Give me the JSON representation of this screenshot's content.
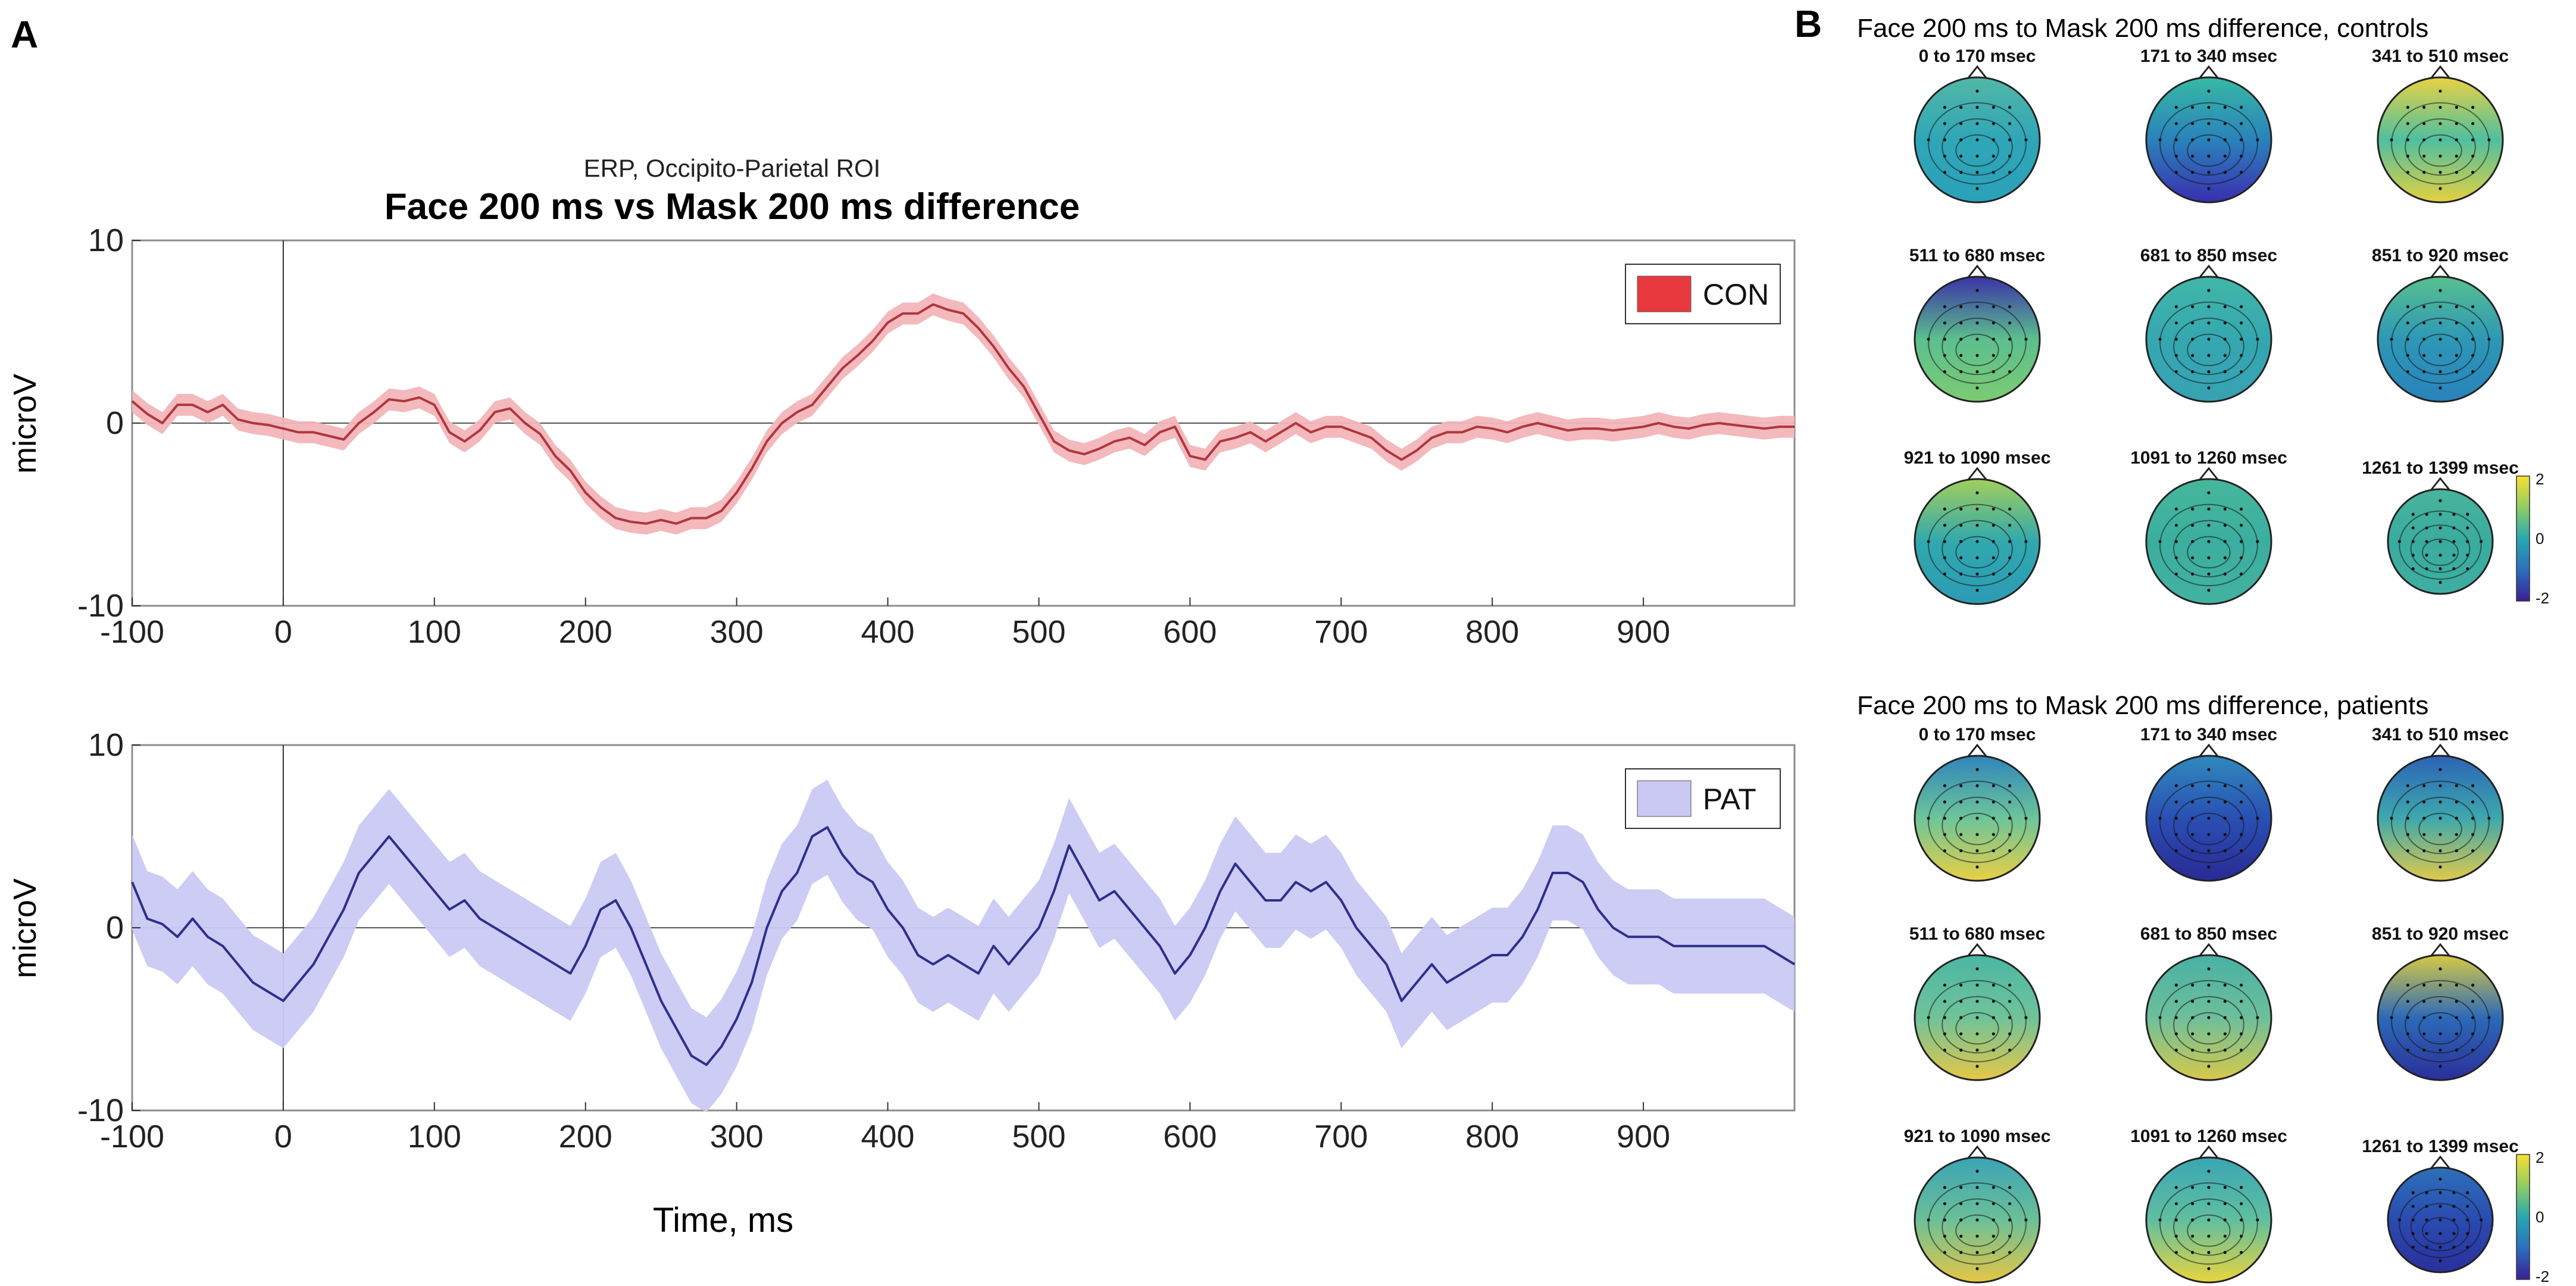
{
  "panels": {
    "a_label": "A",
    "b_label": "B"
  },
  "colors": {
    "con_line": "#b0353f",
    "con_band": "#f2b5b8",
    "con_legend": "#e8393e",
    "pat_line": "#2e2e8c",
    "pat_band": "#c9c9f3",
    "pat_legend": "#c9c9f3",
    "axis": "#222222",
    "frame": "#8c8c8c"
  },
  "chart_data": [
    {
      "type": "line",
      "supertitle": "ERP, Occipito-Parietal ROI",
      "title": "Face 200 ms vs Mask 200 ms difference",
      "xlabel": "",
      "ylabel": "microV",
      "xlim": [
        -100,
        1000
      ],
      "ylim": [
        -10,
        10
      ],
      "xticks": [
        -100,
        0,
        100,
        200,
        300,
        400,
        500,
        600,
        700,
        800,
        900
      ],
      "yticks": [
        -10,
        0,
        10
      ],
      "legend": {
        "label": "CON",
        "position": "top-right"
      },
      "band_halfwidth": 0.6,
      "series": [
        {
          "name": "CON",
          "x": [
            -100,
            -90,
            -80,
            -70,
            -60,
            -50,
            -40,
            -30,
            -20,
            -10,
            0,
            10,
            20,
            30,
            40,
            50,
            60,
            70,
            80,
            90,
            100,
            110,
            120,
            130,
            140,
            150,
            160,
            170,
            180,
            190,
            200,
            210,
            220,
            230,
            240,
            250,
            260,
            270,
            280,
            290,
            300,
            310,
            320,
            330,
            340,
            350,
            360,
            370,
            380,
            390,
            400,
            410,
            420,
            430,
            440,
            450,
            460,
            470,
            480,
            490,
            500,
            510,
            520,
            530,
            540,
            550,
            560,
            570,
            580,
            590,
            600,
            610,
            620,
            630,
            640,
            650,
            660,
            670,
            680,
            690,
            700,
            710,
            720,
            730,
            740,
            750,
            760,
            770,
            780,
            790,
            800,
            810,
            820,
            830,
            840,
            850,
            860,
            870,
            880,
            890,
            900,
            910,
            920,
            930,
            940,
            950,
            960,
            970,
            980,
            990,
            1000
          ],
          "y": [
            1.2,
            0.5,
            0,
            1,
            1,
            0.6,
            1,
            0.2,
            0,
            -0.1,
            -0.3,
            -0.5,
            -0.5,
            -0.7,
            -0.9,
            0,
            0.6,
            1.3,
            1.2,
            1.4,
            1,
            -0.5,
            -1,
            -0.4,
            0.6,
            0.8,
            0,
            -0.6,
            -1.8,
            -2.6,
            -3.8,
            -4.6,
            -5.2,
            -5.4,
            -5.5,
            -5.3,
            -5.5,
            -5.2,
            -5.2,
            -4.8,
            -3.8,
            -2.5,
            -1,
            0,
            0.6,
            1,
            2,
            3,
            3.7,
            4.5,
            5.5,
            6,
            6,
            6.5,
            6.2,
            6,
            5.2,
            4.2,
            3,
            2,
            0.5,
            -1,
            -1.5,
            -1.7,
            -1.4,
            -1,
            -0.8,
            -1.2,
            -0.5,
            -0.2,
            -1.8,
            -2,
            -1,
            -0.8,
            -0.5,
            -1,
            -0.5,
            0,
            -0.5,
            -0.2,
            -0.2,
            -0.5,
            -0.8,
            -1.5,
            -2,
            -1.5,
            -0.8,
            -0.5,
            -0.5,
            -0.2,
            -0.3,
            -0.5,
            -0.2,
            0,
            -0.2,
            -0.4,
            -0.3,
            -0.3,
            -0.4,
            -0.3,
            -0.2,
            0,
            -0.2,
            -0.3,
            -0.1,
            0,
            -0.1,
            -0.2,
            -0.3,
            -0.2,
            -0.2
          ]
        }
      ]
    },
    {
      "type": "line",
      "title": "",
      "xlabel": "Time, ms",
      "ylabel": "microV",
      "xlim": [
        -100,
        1000
      ],
      "ylim": [
        -10,
        10
      ],
      "xticks": [
        -100,
        0,
        100,
        200,
        300,
        400,
        500,
        600,
        700,
        800,
        900
      ],
      "yticks": [
        -10,
        0,
        10
      ],
      "legend": {
        "label": "PAT",
        "position": "top-right"
      },
      "band_halfwidth": 2.6,
      "series": [
        {
          "name": "PAT",
          "x": [
            -100,
            -90,
            -80,
            -70,
            -60,
            -50,
            -40,
            -30,
            -20,
            -10,
            0,
            10,
            20,
            30,
            40,
            50,
            60,
            70,
            80,
            90,
            100,
            110,
            120,
            130,
            140,
            150,
            160,
            170,
            180,
            190,
            200,
            210,
            220,
            230,
            240,
            250,
            260,
            270,
            280,
            290,
            300,
            310,
            320,
            330,
            340,
            350,
            360,
            370,
            380,
            390,
            400,
            410,
            420,
            430,
            440,
            450,
            460,
            470,
            480,
            490,
            500,
            510,
            520,
            530,
            540,
            550,
            560,
            570,
            580,
            590,
            600,
            610,
            620,
            630,
            640,
            650,
            660,
            670,
            680,
            690,
            700,
            710,
            720,
            730,
            740,
            750,
            760,
            770,
            780,
            790,
            800,
            810,
            820,
            830,
            840,
            850,
            860,
            870,
            880,
            890,
            900,
            910,
            920,
            930,
            940,
            950,
            960,
            970,
            980,
            990,
            1000
          ],
          "y": [
            2.5,
            0.5,
            0.2,
            -0.5,
            0.5,
            -0.5,
            -1,
            -2,
            -3,
            -3.5,
            -4,
            -3,
            -2,
            -0.5,
            1,
            3,
            4,
            5,
            4,
            3,
            2,
            1,
            1.5,
            0.5,
            0,
            -0.5,
            -1,
            -1.5,
            -2,
            -2.5,
            -1,
            1,
            1.5,
            0,
            -2,
            -4,
            -5.5,
            -7,
            -7.5,
            -6.5,
            -5,
            -3,
            0,
            2,
            3,
            5,
            5.5,
            4,
            3,
            2.5,
            1,
            0,
            -1.5,
            -2,
            -1.5,
            -2,
            -2.5,
            -1,
            -2,
            -1,
            0,
            2,
            4.5,
            3,
            1.5,
            2,
            1,
            0,
            -1,
            -2.5,
            -1.5,
            0,
            2,
            3.5,
            2.5,
            1.5,
            1.5,
            2.5,
            2,
            2.5,
            1.5,
            0,
            -1,
            -2,
            -4,
            -3,
            -2,
            -3,
            -2.5,
            -2,
            -1.5,
            -1.5,
            -0.5,
            1,
            3,
            3,
            2.5,
            1,
            0,
            -0.5,
            -0.5,
            -0.5,
            -1,
            -1,
            -1,
            -1,
            -1,
            -1,
            -1,
            -1.5,
            -2
          ]
        }
      ]
    }
  ],
  "topomaps": {
    "controls": {
      "title": "Face 200 ms to Mask 200 ms difference, controls",
      "maps": [
        {
          "label": "0 to 170 msec",
          "top": "#52b7a6",
          "mid": "#2fa6b7",
          "bottom": "#2aa1ba"
        },
        {
          "label": "171 to 340 msec",
          "top": "#37b9a4",
          "mid": "#2a82bb",
          "bottom": "#3a2fb0"
        },
        {
          "label": "341 to 510 msec",
          "top": "#e8d241",
          "mid": "#4fbfa0",
          "bottom": "#e4d040"
        },
        {
          "label": "511 to 680 msec",
          "top": "#3a33a7",
          "mid": "#5cbf8e",
          "bottom": "#7ccb72"
        },
        {
          "label": "681 to 850 msec",
          "top": "#41b7a7",
          "mid": "#35a7b0",
          "bottom": "#36a2b3"
        },
        {
          "label": "851 to 920 msec",
          "top": "#58c08e",
          "mid": "#2d98b6",
          "bottom": "#2a82bb"
        },
        {
          "label": "921 to 1090 msec",
          "top": "#a1cf5b",
          "mid": "#31a8ae",
          "bottom": "#2c9bb5"
        },
        {
          "label": "1091 to 1260 msec",
          "top": "#46b79b",
          "mid": "#3cae9f",
          "bottom": "#42b2a0"
        },
        {
          "label": "1261 to 1399 msec",
          "top": "#47b49b",
          "mid": "#3aab9f",
          "bottom": "#3eaea2"
        }
      ],
      "colorbar": {
        "max": "2",
        "mid": "0",
        "min": "-2"
      }
    },
    "patients": {
      "title": "Face 200 ms to Mask 200 ms difference, patients",
      "maps": [
        {
          "label": "0 to 170 msec",
          "top": "#2f85bb",
          "mid": "#6cc59a",
          "bottom": "#e9cf45"
        },
        {
          "label": "171 to 340 msec",
          "top": "#2f8abd",
          "mid": "#2a4fb3",
          "bottom": "#2a2a95"
        },
        {
          "label": "341 to 510 msec",
          "top": "#2c63b6",
          "mid": "#3ea8ad",
          "bottom": "#e1c94a"
        },
        {
          "label": "511 to 680 msec",
          "top": "#4cb6a3",
          "mid": "#6fc39a",
          "bottom": "#e6c747"
        },
        {
          "label": "681 to 850 msec",
          "top": "#48b1a4",
          "mid": "#6dbf9b",
          "bottom": "#d7c94b"
        },
        {
          "label": "851 to 920 msec",
          "top": "#d7c944",
          "mid": "#2d6ab8",
          "bottom": "#2a2f99"
        },
        {
          "label": "921 to 1090 msec",
          "top": "#3ba3b5",
          "mid": "#6bc098",
          "bottom": "#e6c645"
        },
        {
          "label": "1091 to 1260 msec",
          "top": "#3aa6b4",
          "mid": "#60bfa0",
          "bottom": "#e9d43e"
        },
        {
          "label": "1261 to 1399 msec",
          "top": "#2d70b9",
          "mid": "#2a4bb0",
          "bottom": "#2a2f9c"
        }
      ],
      "colorbar": {
        "max": "2",
        "mid": "0",
        "min": "-2"
      }
    }
  }
}
